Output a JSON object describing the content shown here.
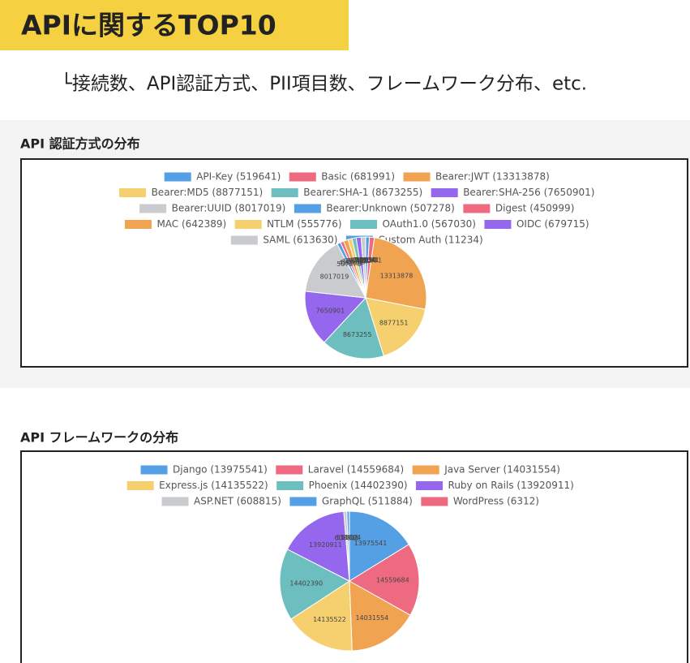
{
  "header": {
    "title": "APIに関するTOP10",
    "subtitle": "└接続数、API認証方式、PII項目数、フレームワーク分布、etc."
  },
  "chart_data": [
    {
      "type": "pie",
      "title": "API 認証方式の分布",
      "categories": [
        "API-Key (519641)",
        "Basic (681991)",
        "Bearer:JWT (13313878)",
        "Bearer:MD5 (8877151)",
        "Bearer:SHA-1 (8673255)",
        "Bearer:SHA-256 (7650901)",
        "Bearer:UUID (8017019)",
        "Bearer:Unknown (507278)",
        "Digest (450999)",
        "MAC (642389)",
        "NTLM (555776)",
        "OAuth1.0 (567030)",
        "OIDC (679715)",
        "SAML (613630)",
        "Custom Auth (11234)"
      ],
      "values": [
        519641,
        681991,
        13313878,
        8877151,
        8673255,
        7650901,
        8017019,
        507278,
        450999,
        642389,
        555776,
        567030,
        679715,
        613630,
        11234
      ],
      "colors": [
        "#559fe4",
        "#ee6a80",
        "#f0a452",
        "#f6d06e",
        "#6cbfbe",
        "#9566ee",
        "#cacbcf",
        "#559fe4",
        "#ee6a80",
        "#f0a452",
        "#f6d06e",
        "#6cbfbe",
        "#9566ee",
        "#cacbcf",
        "#559fe4"
      ]
    },
    {
      "type": "pie",
      "title": "API フレームワークの分布",
      "categories": [
        "Django (13975541)",
        "Laravel (14559684)",
        "Java Server (14031554)",
        "Express.js (14135522)",
        "Phoenix (14402390)",
        "Ruby on Rails (13920911)",
        "ASP.NET (608815)",
        "GraphQL (511884)",
        "WordPress (6312)"
      ],
      "values": [
        13975541,
        14559684,
        14031554,
        14135522,
        14402390,
        13920911,
        608815,
        511884,
        6312
      ],
      "colors": [
        "#559fe4",
        "#ee6a80",
        "#f0a452",
        "#f6d06e",
        "#6cbfbe",
        "#9566ee",
        "#cacbcf",
        "#559fe4",
        "#ee6a80"
      ]
    }
  ]
}
